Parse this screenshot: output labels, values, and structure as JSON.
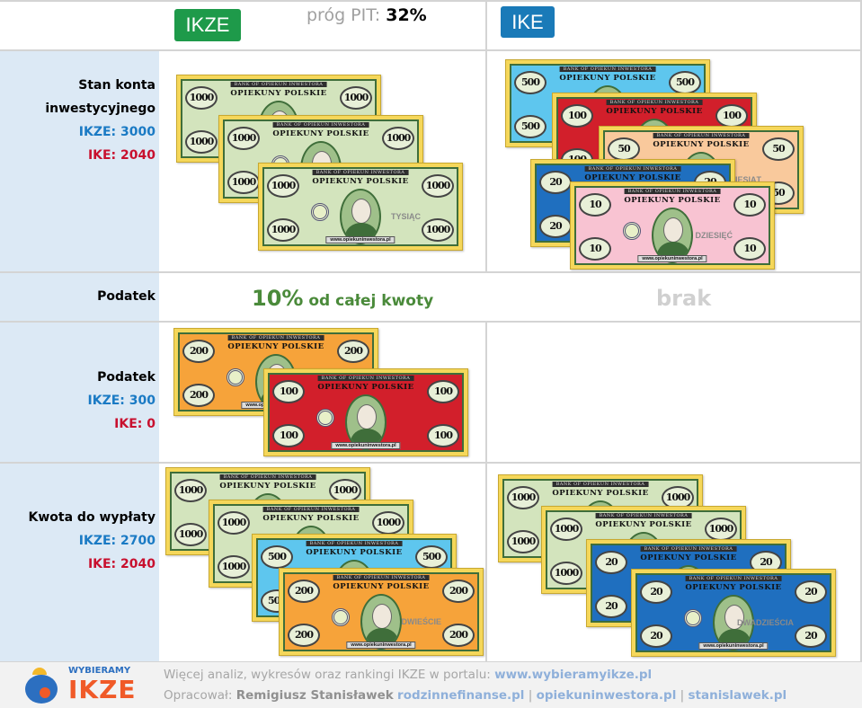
{
  "header": {
    "ikze_label": "IKZE",
    "ike_label": "IKE",
    "pit_label": "próg PIT:",
    "pit_value": "32%",
    "ikze_color": "#1e9a4a",
    "ike_color": "#1a7ab8"
  },
  "rows": {
    "balance": {
      "title1": "Stan konta",
      "title2": "inwestycyjnego",
      "ikze": "IKZE: 3000",
      "ike": "IKE: 2040"
    },
    "tax_rate": {
      "title": "Podatek",
      "ikze_big": "10%",
      "ikze_rest": " od całej kwoty",
      "ike": "brak"
    },
    "tax": {
      "title": "Podatek",
      "ikze": "IKZE: 300",
      "ike": "IKE: 0"
    },
    "payout": {
      "title": "Kwota do wypłaty",
      "ikze": "IKZE: 2700",
      "ike": "IKE: 2040"
    }
  },
  "banknote": {
    "bank": "BANK OF OPIEKUN INWESTORA",
    "title": "OPIEKUNY POLSKIE",
    "url": "www.opiekuninwestora.pl"
  },
  "denominations": {
    "1000": {
      "value": "1000",
      "word": "TYSIĄC",
      "color": "#d3e4bd"
    },
    "500": {
      "value": "500",
      "word": "",
      "color": "#5ec6ee"
    },
    "200": {
      "value": "200",
      "word": "DWIEŚCIE",
      "color": "#f6a33a"
    },
    "100": {
      "value": "100",
      "word": "",
      "color": "#d21f2b"
    },
    "50": {
      "value": "50",
      "word": "PIĘĆDZIESIĄT",
      "color": "#f9c99c"
    },
    "20": {
      "value": "20",
      "word": "DWADZIEŚCIA",
      "color": "#1f6fbf"
    },
    "10": {
      "value": "10",
      "word": "DZIESIĘĆ",
      "color": "#f8c3d2"
    }
  },
  "footer": {
    "logo_top": "WYBIERAMY",
    "logo_bottom": "IKZE",
    "line1_text": "Więcej analiz, wykresów oraz rankingi IKZE w portalu: ",
    "line1_link": "www.wybieramyikze.pl",
    "line2_label": "Opracował: ",
    "author": "Remigiusz Stanisławek",
    "link1": "rodzinnefinanse.pl",
    "sep": " | ",
    "link2": "opiekuninwestora.pl",
    "link3": "stanislawek.pl"
  }
}
